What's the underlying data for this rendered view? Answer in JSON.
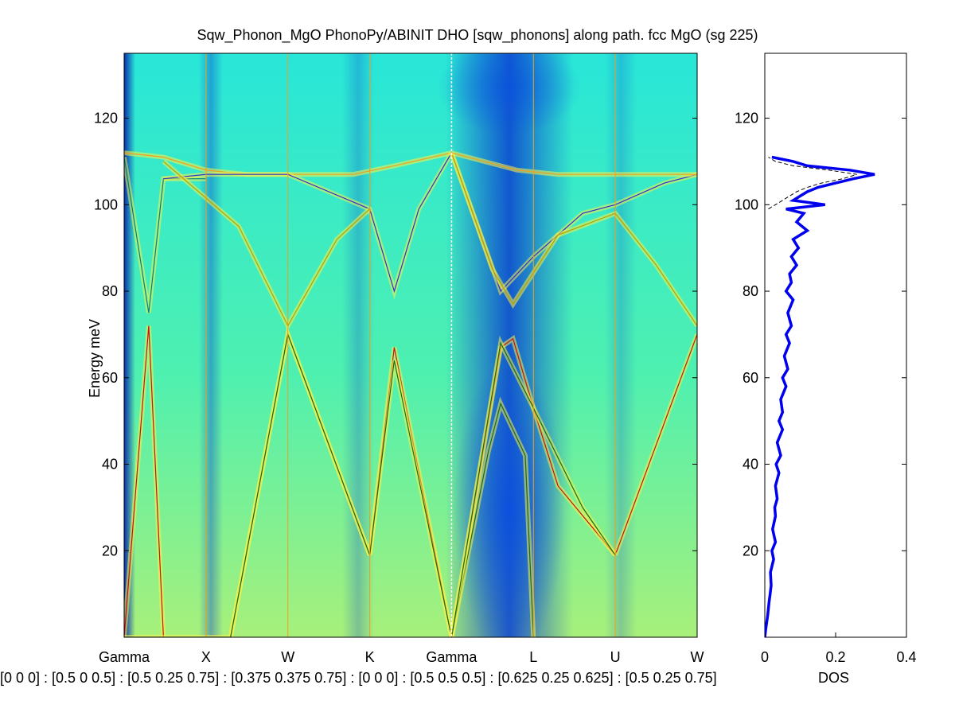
{
  "title": "Sqw_Phonon_MgO PhonoPy/ABINIT DHO [sqw_phonons] along path. fcc MgO (sg 225)",
  "colors": {
    "bg_low": "#2fe8d0",
    "bg_high": "#8cf28a",
    "blue_dark": "#0a3fd0",
    "yellow": "#f7f24a",
    "red": "#cc1010",
    "dos_blue": "#0000ee",
    "orange_vline": "#f0a020"
  },
  "chart_data": [
    {
      "type": "heatmap",
      "ylabel": "Energy meV",
      "ylim": [
        0,
        135
      ],
      "yticks": [
        20,
        40,
        60,
        80,
        100,
        120
      ],
      "xticks": [
        "Gamma",
        "X",
        "W",
        "K",
        "Gamma",
        "L",
        "U",
        "W"
      ],
      "xtick_positions": [
        0,
        1,
        2,
        3,
        4,
        5,
        6,
        7
      ],
      "path_label": "[0 0 0] : [0.5 0 0.5] : [0.5 0.25 0.75] : [0.375 0.375 0.75] : [0 0 0] : [0.5 0.5 0.5] : [0.625 0.25 0.625] : [0.5 0.25 0.75]",
      "branches": [
        {
          "color": "#cc1010",
          "x": [
            0,
            0.3,
            0.48
          ],
          "y": [
            0,
            72,
            0
          ]
        },
        {
          "color": "#cc1010",
          "x": [
            1.3,
            2.0,
            3.0
          ],
          "y": [
            0,
            70,
            19
          ]
        },
        {
          "color": "#cc1010",
          "x": [
            3.0,
            3.3,
            4.0
          ],
          "y": [
            19,
            67,
            0
          ]
        },
        {
          "color": "#1a6a1a",
          "x": [
            0,
            1.0,
            1.3,
            2.0,
            3.0,
            3.3,
            4.0
          ],
          "y": [
            0,
            0,
            0,
            70,
            19,
            64,
            0
          ]
        },
        {
          "color": "#cc1010",
          "x": [
            4.0,
            4.6,
            4.75,
            5.0,
            5.3,
            6.0
          ],
          "y": [
            0,
            67,
            69,
            53,
            35,
            19
          ]
        },
        {
          "color": "#cc1010",
          "x": [
            6.0,
            7.0
          ],
          "y": [
            19,
            70
          ]
        },
        {
          "color": "#1a6a1a",
          "x": [
            4.0,
            4.45,
            4.6,
            4.9,
            5.0
          ],
          "y": [
            0,
            43,
            54,
            42,
            0
          ]
        },
        {
          "color": "#1a6a1a",
          "x": [
            4.0,
            4.6,
            5.0,
            5.6,
            6.0
          ],
          "y": [
            0,
            68,
            53,
            30,
            19
          ]
        },
        {
          "color": "#008080",
          "x": [
            0,
            0.3,
            0.48,
            1.0
          ],
          "y": [
            111,
            75,
            106,
            106
          ]
        },
        {
          "color": "#f0a020",
          "x": [
            0,
            0.48,
            1.0,
            1.5,
            2.0,
            2.8,
            3.3,
            4.0
          ],
          "y": [
            112,
            111,
            108,
            107,
            107,
            107,
            109,
            112
          ]
        },
        {
          "color": "#3030cc",
          "x": [
            0.48,
            1.0,
            2.0,
            3.0,
            3.3,
            3.6,
            4.0
          ],
          "y": [
            106,
            107,
            107,
            99,
            80,
            99,
            112
          ]
        },
        {
          "color": "#b8a000",
          "x": [
            0.48,
            1.4,
            2.0,
            2.6,
            3.0
          ],
          "y": [
            110,
            95,
            72,
            92,
            99
          ]
        },
        {
          "color": "#3030cc",
          "x": [
            4.0,
            4.6,
            5.0,
            5.6,
            6.0,
            6.6,
            7.0
          ],
          "y": [
            112,
            80,
            88,
            98,
            100,
            105,
            107
          ]
        },
        {
          "color": "#b8a000",
          "x": [
            4.0,
            4.5,
            4.75,
            5.3,
            6.0,
            6.5,
            7.0
          ],
          "y": [
            112,
            85,
            77,
            93,
            98,
            86,
            72
          ]
        },
        {
          "color": "#f0a020",
          "x": [
            4.0,
            4.8,
            5.3,
            6.0,
            6.6,
            7.0
          ],
          "y": [
            112,
            108,
            107,
            107,
            107,
            107
          ]
        }
      ]
    },
    {
      "type": "line",
      "xlabel": "DOS",
      "xlim": [
        0,
        0.4
      ],
      "ylim": [
        0,
        135
      ],
      "xticks": [
        0,
        0.2,
        0.4
      ],
      "yticks": [
        20,
        40,
        60,
        80,
        100,
        120
      ],
      "series": [
        {
          "color": "#0000ee",
          "energy": [
            0,
            2,
            5,
            8,
            10,
            12,
            15,
            18,
            20,
            22,
            25,
            28,
            30,
            32,
            35,
            38,
            40,
            42,
            45,
            48,
            50,
            52,
            55,
            58,
            60,
            62,
            65,
            68,
            70,
            72,
            75,
            78,
            80,
            82,
            84,
            86,
            88,
            90,
            92,
            94,
            96,
            98,
            99,
            100,
            101,
            102,
            103,
            104,
            105,
            106,
            107,
            108,
            109,
            110,
            111
          ],
          "dos": [
            0.0,
            0.003,
            0.008,
            0.012,
            0.015,
            0.018,
            0.016,
            0.025,
            0.02,
            0.03,
            0.022,
            0.03,
            0.028,
            0.035,
            0.03,
            0.04,
            0.032,
            0.045,
            0.035,
            0.05,
            0.04,
            0.05,
            0.045,
            0.06,
            0.05,
            0.065,
            0.055,
            0.07,
            0.06,
            0.075,
            0.065,
            0.08,
            0.06,
            0.075,
            0.07,
            0.09,
            0.075,
            0.095,
            0.08,
            0.12,
            0.09,
            0.11,
            0.06,
            0.17,
            0.08,
            0.1,
            0.12,
            0.15,
            0.2,
            0.25,
            0.31,
            0.24,
            0.12,
            0.08,
            0.02
          ]
        },
        {
          "color": "#000000",
          "energy": [
            99,
            100,
            101,
            102,
            103,
            104,
            105,
            106,
            107,
            108,
            109,
            110,
            111
          ],
          "dos": [
            0.01,
            0.03,
            0.05,
            0.07,
            0.09,
            0.12,
            0.16,
            0.22,
            0.26,
            0.18,
            0.08,
            0.03,
            0.01
          ]
        }
      ]
    }
  ],
  "labels": {
    "ylabel": "Energy meV",
    "path": "[0 0 0] : [0.5 0 0.5] : [0.5 0.25 0.75] : [0.375 0.375 0.75] : [0 0 0] : [0.5 0.5 0.5] : [0.625 0.25 0.625] : [0.5 0.25 0.75]",
    "dos_xlabel": "DOS"
  }
}
